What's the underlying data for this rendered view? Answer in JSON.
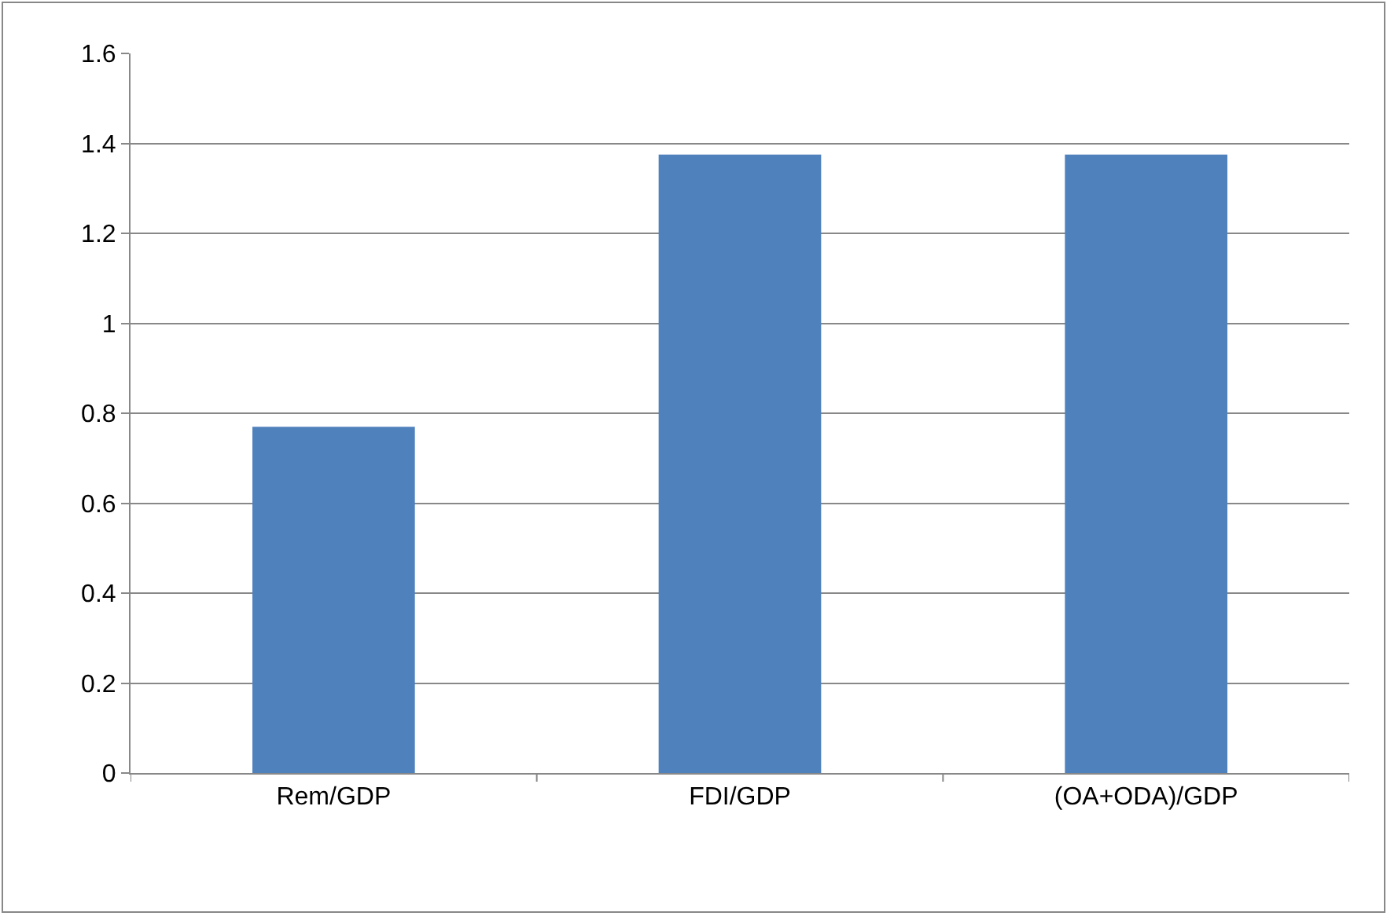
{
  "chart_data": {
    "type": "bar",
    "categories": [
      "Rem/GDP",
      "FDI/GDP",
      "(OA+ODA)/GDP"
    ],
    "values": [
      0.77,
      1.375,
      1.375
    ],
    "color": "#4f81bd",
    "ylim": [
      0,
      1.6
    ],
    "yticks": [
      0,
      0.2,
      0.4,
      0.6,
      0.8,
      1,
      1.2,
      1.4,
      1.6
    ],
    "grid": "y",
    "legend": false
  }
}
